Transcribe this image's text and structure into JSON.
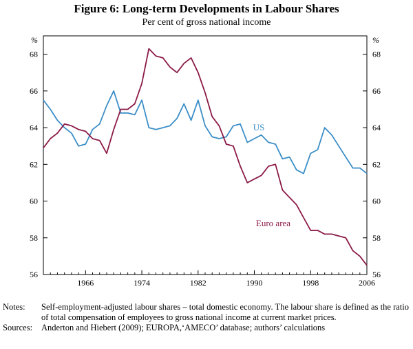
{
  "chart_data": {
    "type": "line",
    "title": "Figure 6: Long-term Developments in Labour Shares",
    "subtitle": "Per cent of gross national income",
    "ylabel_left": "%",
    "ylabel_right": "%",
    "xlim": [
      1960,
      2006
    ],
    "ylim": [
      56,
      69
    ],
    "x_ticks": [
      "1966",
      "1974",
      "1982",
      "1990",
      "1998",
      "2006"
    ],
    "y_ticks": [
      "56",
      "58",
      "60",
      "62",
      "64",
      "66",
      "68"
    ],
    "series": [
      {
        "name": "US",
        "color": "#3b8ec7",
        "x": [
          1960,
          1961,
          1962,
          1963,
          1964,
          1965,
          1966,
          1967,
          1968,
          1969,
          1970,
          1971,
          1972,
          1973,
          1974,
          1975,
          1976,
          1977,
          1978,
          1979,
          1980,
          1981,
          1982,
          1983,
          1984,
          1985,
          1986,
          1987,
          1988,
          1989,
          1990,
          1991,
          1992,
          1993,
          1994,
          1995,
          1996,
          1997,
          1998,
          1999,
          2000,
          2001,
          2002,
          2003,
          2004,
          2005,
          2006
        ],
        "y": [
          65.5,
          65.0,
          64.4,
          64.0,
          63.7,
          63.0,
          63.1,
          63.9,
          64.2,
          65.2,
          66.0,
          64.8,
          64.8,
          64.7,
          65.5,
          64.0,
          63.9,
          64.0,
          64.1,
          64.5,
          65.3,
          64.4,
          65.5,
          64.1,
          63.5,
          63.4,
          63.5,
          64.1,
          64.2,
          63.2,
          63.4,
          63.6,
          63.2,
          63.1,
          62.3,
          62.4,
          61.7,
          61.5,
          62.6,
          62.8,
          64.0,
          63.6,
          63.0,
          62.4,
          61.8,
          61.8,
          61.5
        ]
      },
      {
        "name": "Euro area",
        "color": "#8b1a47",
        "x": [
          1960,
          1961,
          1962,
          1963,
          1964,
          1965,
          1966,
          1967,
          1968,
          1969,
          1970,
          1971,
          1972,
          1973,
          1974,
          1975,
          1976,
          1977,
          1978,
          1979,
          1980,
          1981,
          1982,
          1983,
          1984,
          1985,
          1986,
          1987,
          1988,
          1989,
          1990,
          1991,
          1992,
          1993,
          1994,
          1995,
          1996,
          1997,
          1998,
          1999,
          2000,
          2001,
          2002,
          2003,
          2004,
          2005,
          2006
        ],
        "y": [
          62.9,
          63.4,
          63.7,
          64.2,
          64.1,
          63.9,
          63.8,
          63.4,
          63.3,
          62.6,
          63.9,
          65.0,
          65.0,
          65.3,
          66.4,
          68.3,
          67.9,
          67.8,
          67.3,
          67.0,
          67.5,
          67.8,
          67.0,
          65.9,
          64.6,
          64.1,
          63.1,
          63.0,
          61.9,
          61.0,
          61.2,
          61.4,
          61.9,
          62.0,
          60.6,
          60.2,
          59.8,
          59.1,
          58.4,
          58.4,
          58.2,
          58.2,
          58.1,
          58.0,
          57.3,
          57.0,
          56.5
        ]
      }
    ],
    "annotations": [
      "US",
      "Euro area"
    ]
  },
  "notes": {
    "notes_label": "Notes:",
    "notes_text": "Self-employment-adjusted labour shares – total domestic economy. The labour share is defined as the ratio of total compensation of employees to gross national income at current market prices.",
    "sources_label": "Sources:",
    "sources_text": "Anderton and Hiebert (2009); EUROPA,‘AMECO’ database; authors’ calculations"
  }
}
